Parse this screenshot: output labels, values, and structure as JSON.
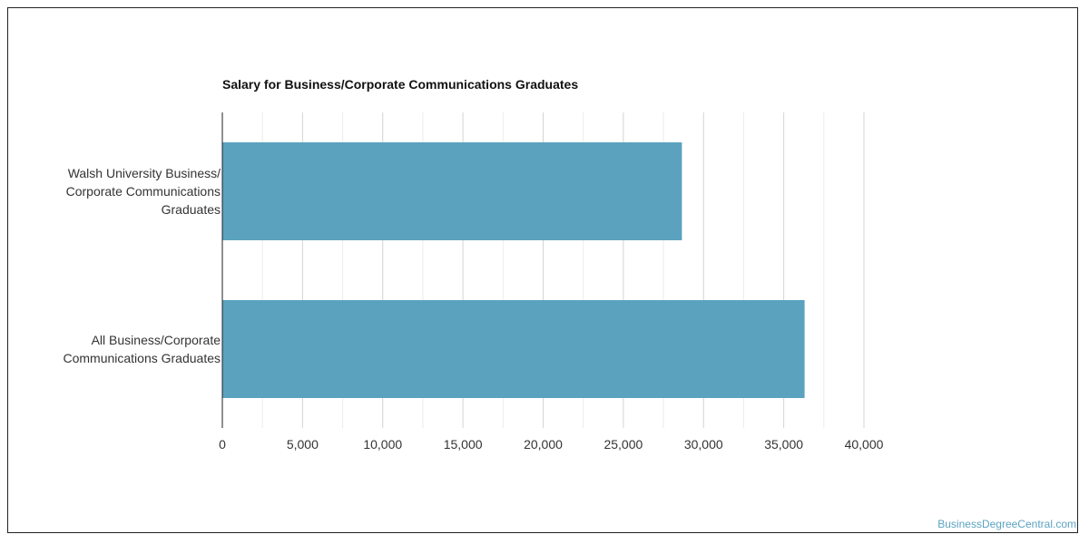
{
  "chart_data": {
    "type": "bar",
    "orientation": "horizontal",
    "title": "Salary for Business/Corporate Communications Graduates",
    "categories": [
      "Walsh University Business/ Corporate Communications Graduates",
      "All Business/Corporate Communications Graduates"
    ],
    "category_lines": [
      [
        "Walsh University Business/",
        "Corporate Communications",
        "Graduates"
      ],
      [
        "All Business/Corporate",
        "Communications Graduates"
      ]
    ],
    "values": [
      28650,
      36300
    ],
    "xlim": [
      0,
      40000
    ],
    "x_ticks": [
      "0",
      "5,000",
      "10,000",
      "15,000",
      "20,000",
      "25,000",
      "30,000",
      "35,000",
      "40,000"
    ],
    "grid": true,
    "legend": "none",
    "bar_color": "#5ba2bf"
  },
  "watermark": "BusinessDegreeCentral.com"
}
